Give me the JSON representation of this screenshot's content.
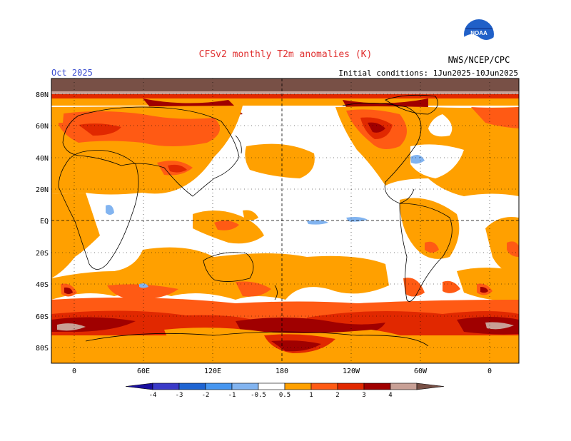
{
  "header": {
    "title": "CFSv2 monthly T2m anomalies (K)",
    "agency": "NWS/NCEP/CPC",
    "logo_text": "NOAA",
    "valid_month": "Oct 2025",
    "initial_conditions": "Initial conditions: 1Jun2025-10Jun2025"
  },
  "map": {
    "projection": "cylindrical equidistant, centered on 180",
    "lat_labels": [
      "80N",
      "60N",
      "40N",
      "20N",
      "EQ",
      "20S",
      "40S",
      "60S",
      "80S"
    ],
    "lon_labels": [
      "0",
      "60E",
      "120E",
      "180",
      "120W",
      "60W",
      "0"
    ],
    "grid": "dotted, every 20 degrees latitude / 60 degrees longitude",
    "ocean_color": "#ffffff",
    "coastline_color": "#000000"
  },
  "colorbar": {
    "ticks": [
      "-4",
      "-3",
      "-2",
      "-1",
      "-0.5",
      "0.5",
      "1",
      "2",
      "3",
      "4"
    ],
    "bins": [
      {
        "range": "< -4",
        "color": "#1a0f9e"
      },
      {
        "range": "-4 to -3",
        "color": "#3a3ac8"
      },
      {
        "range": "-3 to -2",
        "color": "#1e64d2"
      },
      {
        "range": "-2 to -1",
        "color": "#4696f0"
      },
      {
        "range": "-1 to -0.5",
        "color": "#82b4f0"
      },
      {
        "range": "-0.5 to 0.5",
        "color": "#ffffff"
      },
      {
        "range": "0.5 to 1",
        "color": "#ffa000"
      },
      {
        "range": "1 to 2",
        "color": "#ff5a14"
      },
      {
        "range": "2 to 3",
        "color": "#e12800"
      },
      {
        "range": "3 to 4",
        "color": "#a00000"
      },
      {
        "range": "4+",
        "color": "#c8a096"
      },
      {
        "range": "> 4 (arrow)",
        "color": "#785046"
      }
    ]
  },
  "colors": {
    "title": "#e03030",
    "month_label": "#3a4ed0",
    "text": "#000000",
    "frame": "#000000"
  }
}
